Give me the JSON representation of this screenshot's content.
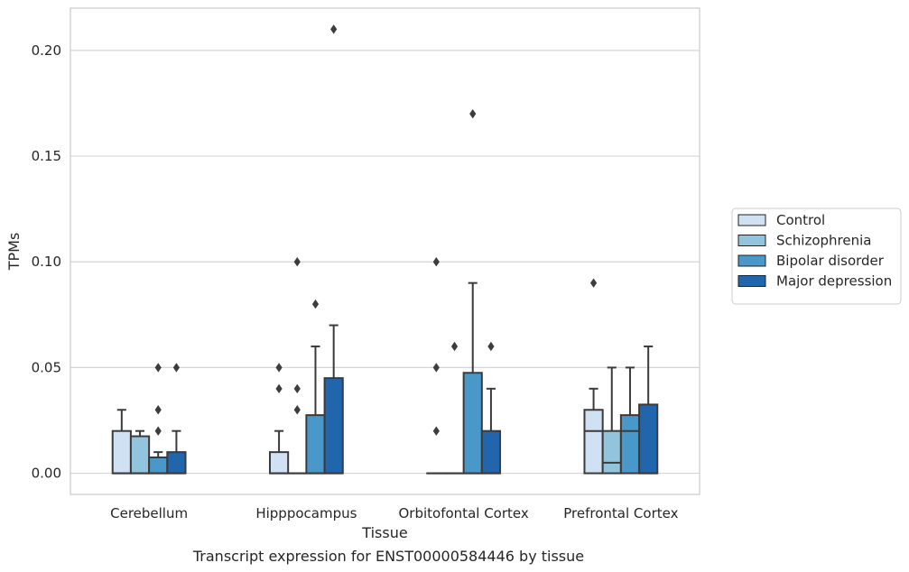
{
  "chart_data": {
    "type": "box",
    "xlabel": "Tissue",
    "ylabel": "TPMs",
    "caption": "Transcript expression for ENST00000584446 by tissue",
    "ylim": [
      -0.01,
      0.22
    ],
    "yticks": [
      0.0,
      0.05,
      0.1,
      0.15,
      0.2
    ],
    "ytick_labels": [
      "0.00",
      "0.05",
      "0.10",
      "0.15",
      "0.20"
    ],
    "grid": true,
    "legend_position": "right",
    "categories": [
      "Cerebellum",
      "Hipppocampus",
      "Orbitofontal Cortex",
      "Prefrontal Cortex"
    ],
    "series": [
      {
        "name": "Control",
        "color": "#cfe1f2",
        "boxes": [
          {
            "q1": 0.0,
            "median": 0.0,
            "q3": 0.02,
            "whisker_low": 0.0,
            "whisker_high": 0.03,
            "outliers": []
          },
          {
            "q1": 0.0,
            "median": 0.0,
            "q3": 0.01,
            "whisker_low": 0.0,
            "whisker_high": 0.02,
            "outliers": [
              0.04,
              0.05
            ]
          },
          {
            "q1": 0.0,
            "median": 0.0,
            "q3": 0.0,
            "whisker_low": 0.0,
            "whisker_high": 0.0,
            "outliers": [
              0.02,
              0.05,
              0.1
            ]
          },
          {
            "q1": 0.0,
            "median": 0.02,
            "q3": 0.03,
            "whisker_low": 0.0,
            "whisker_high": 0.04,
            "outliers": [
              0.09
            ]
          }
        ]
      },
      {
        "name": "Schizophrenia",
        "color": "#93c4de",
        "boxes": [
          {
            "q1": 0.0,
            "median": 0.0,
            "q3": 0.0175,
            "whisker_low": 0.0,
            "whisker_high": 0.02,
            "outliers": []
          },
          {
            "q1": 0.0,
            "median": 0.0,
            "q3": 0.0,
            "whisker_low": 0.0,
            "whisker_high": 0.0,
            "outliers": [
              0.03,
              0.04,
              0.1
            ]
          },
          {
            "q1": 0.0,
            "median": 0.0,
            "q3": 0.0,
            "whisker_low": 0.0,
            "whisker_high": 0.0,
            "outliers": [
              0.06
            ]
          },
          {
            "q1": 0.0,
            "median": 0.005,
            "q3": 0.02,
            "whisker_low": 0.0,
            "whisker_high": 0.05,
            "outliers": []
          }
        ]
      },
      {
        "name": "Bipolar disorder",
        "color": "#4a98c9",
        "boxes": [
          {
            "q1": 0.0,
            "median": 0.0,
            "q3": 0.0075,
            "whisker_low": 0.0,
            "whisker_high": 0.01,
            "outliers": [
              0.02,
              0.03,
              0.05
            ]
          },
          {
            "q1": 0.0,
            "median": 0.0,
            "q3": 0.0275,
            "whisker_low": 0.0,
            "whisker_high": 0.06,
            "outliers": [
              0.08
            ]
          },
          {
            "q1": 0.0,
            "median": 0.0,
            "q3": 0.0475,
            "whisker_low": 0.0,
            "whisker_high": 0.09,
            "outliers": [
              0.17
            ]
          },
          {
            "q1": 0.0,
            "median": 0.02,
            "q3": 0.0275,
            "whisker_low": 0.0,
            "whisker_high": 0.05,
            "outliers": []
          }
        ]
      },
      {
        "name": "Major depression",
        "color": "#2166ac",
        "boxes": [
          {
            "q1": 0.0,
            "median": 0.0,
            "q3": 0.01,
            "whisker_low": 0.0,
            "whisker_high": 0.02,
            "outliers": [
              0.05
            ]
          },
          {
            "q1": 0.0,
            "median": 0.0,
            "q3": 0.045,
            "whisker_low": 0.0,
            "whisker_high": 0.07,
            "outliers": [
              0.21
            ]
          },
          {
            "q1": 0.0,
            "median": 0.0,
            "q3": 0.02,
            "whisker_low": 0.0,
            "whisker_high": 0.04,
            "outliers": [
              0.06
            ]
          },
          {
            "q1": 0.0,
            "median": 0.0,
            "q3": 0.0325,
            "whisker_low": 0.0,
            "whisker_high": 0.06,
            "outliers": []
          }
        ]
      }
    ]
  }
}
